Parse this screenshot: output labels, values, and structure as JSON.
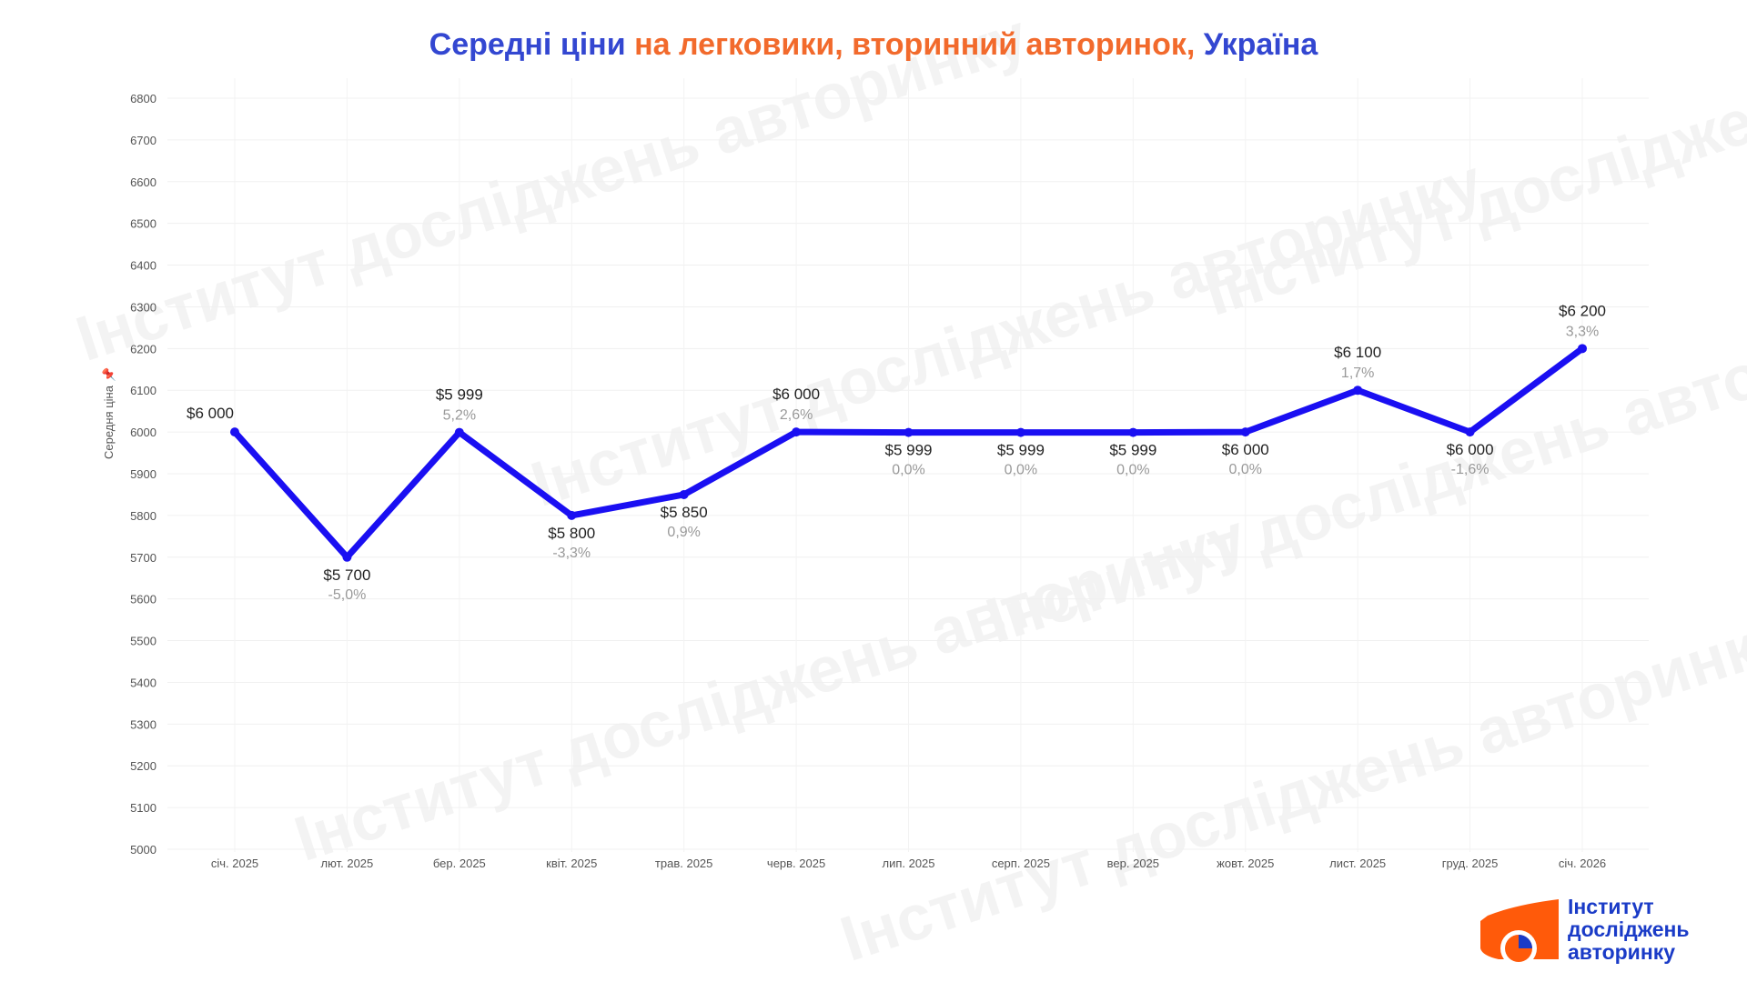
{
  "title": {
    "part1": "Середні ціни ",
    "part2": "на легковики, вторинний авторинок, ",
    "part3": "Україна"
  },
  "colors": {
    "title_blue": "#3347d1",
    "title_orange": "#f26a2c",
    "line": "#1a0ff2",
    "logo_orange": "#ff5a0a",
    "logo_blue": "#1a3bc7"
  },
  "logo": {
    "line1": "Інститут",
    "line2": "досліджень",
    "line3": "авторинку"
  },
  "watermark": "Інститут досліджень авторинку",
  "chart_data": {
    "type": "line",
    "title": "Середні ціни на легковики, вторинний авторинок, Україна",
    "xlabel": "",
    "ylabel": "Середня ціна",
    "ylim": [
      5000,
      6800
    ],
    "yticks": [
      5000,
      5100,
      5200,
      5300,
      5400,
      5500,
      5600,
      5700,
      5800,
      5900,
      6000,
      6100,
      6200,
      6300,
      6400,
      6500,
      6600,
      6700,
      6800
    ],
    "categories": [
      "січ. 2025",
      "лют. 2025",
      "бер. 2025",
      "квіт. 2025",
      "трав. 2025",
      "черв. 2025",
      "лип. 2025",
      "серп. 2025",
      "вер. 2025",
      "жовт. 2025",
      "лист. 2025",
      "груд. 2025",
      "січ. 2026"
    ],
    "values": [
      6000,
      5700,
      5999,
      5800,
      5850,
      6000,
      5999,
      5999,
      5999,
      6000,
      6100,
      6000,
      6200
    ],
    "value_labels": [
      "$6 000",
      "$5 700",
      "$5 999",
      "$5 800",
      "$5 850",
      "$6 000",
      "$5 999",
      "$5 999",
      "$5 999",
      "$6 000",
      "$6 100",
      "$6 000",
      "$6 200"
    ],
    "change_labels": [
      "",
      "-5,0%",
      "5,2%",
      "-3,3%",
      "0,9%",
      "2,6%",
      "0,0%",
      "0,0%",
      "0,0%",
      "0,0%",
      "1,7%",
      "-1,6%",
      "3,3%"
    ],
    "grid": true
  }
}
